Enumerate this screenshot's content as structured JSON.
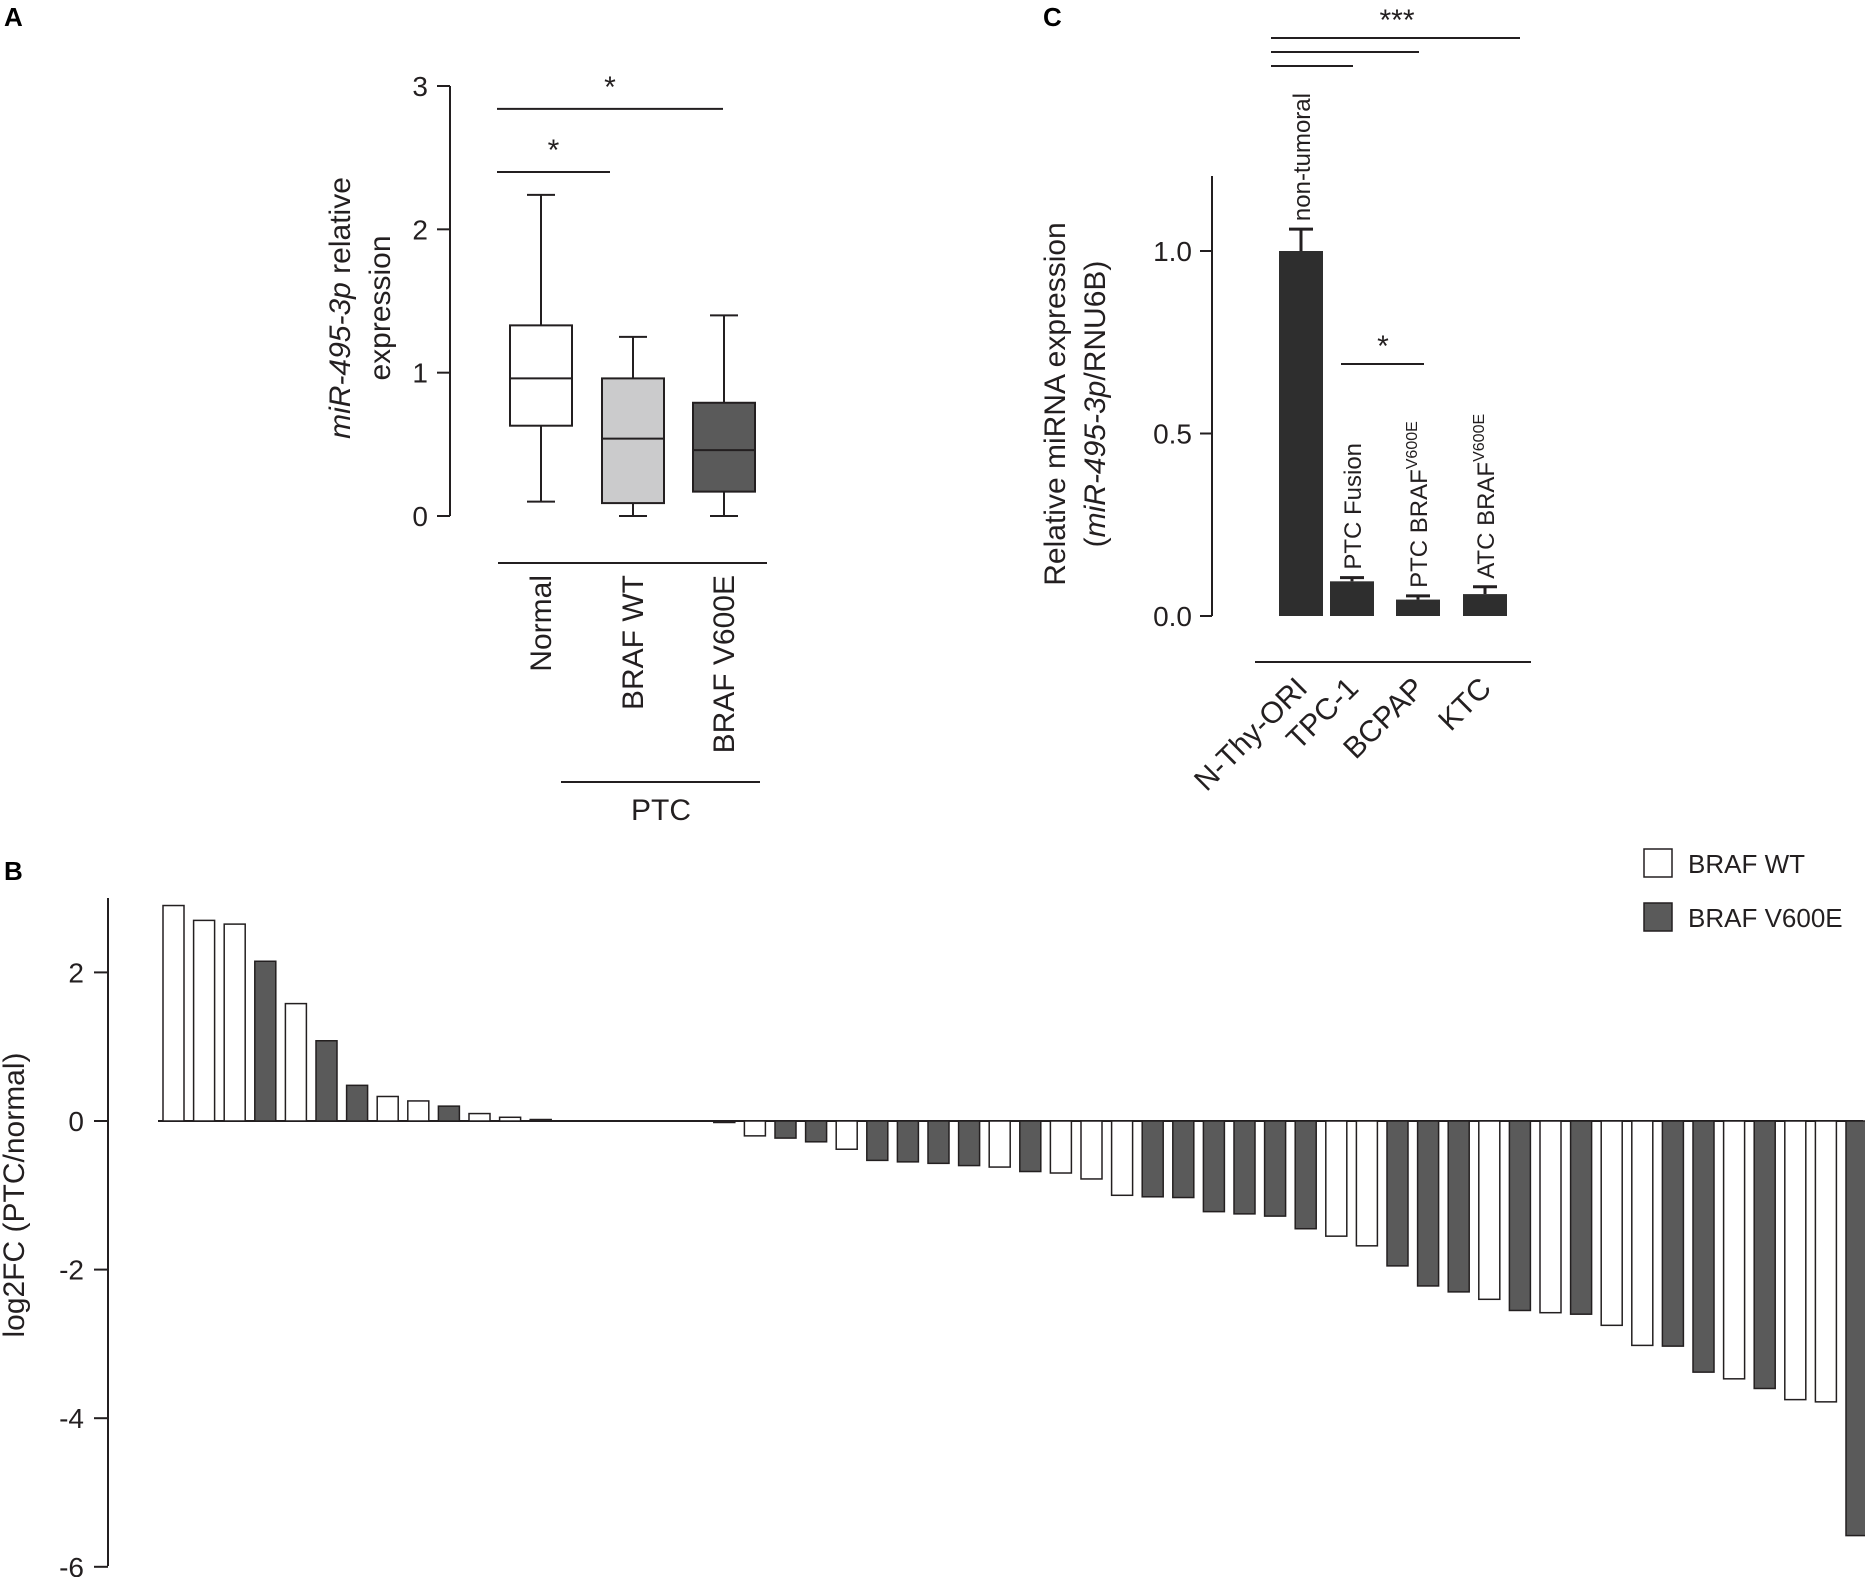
{
  "panels": {
    "A": "A",
    "B": "B",
    "C": "C"
  },
  "colors": {
    "black": "#2e2e2e",
    "dark_gray": "#5a5a5a",
    "light_gray": "#cbcbcc",
    "white": "#ffffff",
    "axis": "#231f20"
  },
  "chart_data": [
    {
      "panel": "A",
      "type": "box",
      "ylabel_italic": "miR-495-3p",
      "ylabel_rest": " relative",
      "ylabel_line2": "expression",
      "ylim": [
        0,
        3
      ],
      "yticks": [
        "0",
        "1",
        "2",
        "3"
      ],
      "categories": [
        "Normal",
        "BRAF WT",
        "BRAF V600E"
      ],
      "group_label": "PTC",
      "boxes": [
        {
          "name": "Normal",
          "min": 0.1,
          "q1": 0.63,
          "median": 0.96,
          "q3": 1.33,
          "max": 2.24,
          "color": "#ffffff"
        },
        {
          "name": "BRAF WT",
          "min": 0.0,
          "q1": 0.09,
          "median": 0.54,
          "q3": 0.96,
          "max": 1.25,
          "color": "#cbcbcc"
        },
        {
          "name": "BRAF V600E",
          "min": 0.0,
          "q1": 0.17,
          "median": 0.46,
          "q3": 0.79,
          "max": 1.4,
          "color": "#5a5a5a"
        }
      ],
      "significance": [
        {
          "from": 0,
          "to": 1,
          "label": "*",
          "y": 2.4
        },
        {
          "from": 0,
          "to": 2,
          "label": "*",
          "y": 2.84
        }
      ]
    },
    {
      "panel": "C",
      "type": "bar",
      "ylabel_line1": "Relative miRNA expression",
      "ylabel_open": "(",
      "ylabel_italic": "miR-495-3p",
      "ylabel_close": "/RNU6B)",
      "ylim": [
        0,
        1.2
      ],
      "yticks": [
        "0.0",
        "0.5",
        "1.0"
      ],
      "categories": [
        "N-Thy-ORI",
        "TPC-1",
        "BCPAP",
        "KTC"
      ],
      "values": [
        1.0,
        0.095,
        0.045,
        0.06
      ],
      "errors": [
        0.06,
        0.01,
        0.01,
        0.02
      ],
      "bar_labels": [
        {
          "main": "non-tumoral",
          "sup": ""
        },
        {
          "main": "PTC Fusion",
          "sup": ""
        },
        {
          "main": "PTC BRAF",
          "sup": "V600E"
        },
        {
          "main": "ATC BRAF",
          "sup": "V600E"
        }
      ],
      "significance_top": "***",
      "significance_mid": "*"
    },
    {
      "panel": "B",
      "type": "bar",
      "ylabel": "log2FC (PTC/normal)",
      "ylim": [
        -6,
        3
      ],
      "yticks": [
        "2",
        "0",
        "-2",
        "-4",
        "-6"
      ],
      "legend": [
        {
          "name": "BRAF WT",
          "color": "#ffffff"
        },
        {
          "name": "BRAF V600E",
          "color": "#5a5a5a"
        }
      ],
      "values": [
        2.9,
        2.7,
        2.65,
        2.15,
        1.58,
        1.08,
        0.48,
        0.33,
        0.27,
        0.2,
        0.1,
        0.05,
        0.02,
        0,
        0,
        0,
        0,
        0,
        -0.02,
        -0.2,
        -0.23,
        -0.28,
        -0.38,
        -0.53,
        -0.55,
        -0.57,
        -0.6,
        -0.62,
        -0.68,
        -0.7,
        -0.78,
        -1.0,
        -1.02,
        -1.03,
        -1.22,
        -1.25,
        -1.28,
        -1.45,
        -1.55,
        -1.68,
        -1.95,
        -2.22,
        -2.3,
        -2.4,
        -2.55,
        -2.58,
        -2.6,
        -2.75,
        -3.02,
        -3.03,
        -3.38,
        -3.47,
        -3.6,
        -3.75,
        -3.78,
        -5.58
      ],
      "groups": [
        "WT",
        "WT",
        "WT",
        "V600E",
        "WT",
        "V600E",
        "V600E",
        "WT",
        "WT",
        "V600E",
        "WT",
        "WT",
        "WT",
        "WT",
        "WT",
        "WT",
        "WT",
        "WT",
        "V600E",
        "WT",
        "V600E",
        "V600E",
        "WT",
        "V600E",
        "V600E",
        "V600E",
        "V600E",
        "WT",
        "V600E",
        "WT",
        "WT",
        "WT",
        "V600E",
        "V600E",
        "V600E",
        "V600E",
        "V600E",
        "V600E",
        "WT",
        "WT",
        "V600E",
        "V600E",
        "V600E",
        "WT",
        "V600E",
        "WT",
        "V600E",
        "WT",
        "WT",
        "V600E",
        "V600E",
        "WT",
        "V600E",
        "WT",
        "WT",
        "V600E"
      ]
    }
  ]
}
